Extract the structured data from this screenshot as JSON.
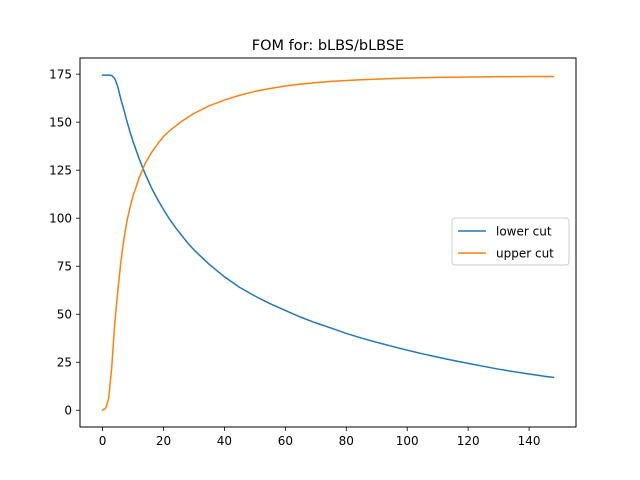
{
  "chart_data": {
    "type": "line",
    "title": "FOM for: bLBS/bLBSE",
    "xlabel": "",
    "ylabel": "",
    "xlim": [
      -7.4,
      155.4
    ],
    "ylim": [
      -8.7,
      183.4
    ],
    "xticks": [
      0,
      20,
      40,
      60,
      80,
      100,
      120,
      140
    ],
    "yticks": [
      0,
      25,
      50,
      75,
      100,
      125,
      150,
      175
    ],
    "grid": false,
    "legend_position": "center-right",
    "x": [
      0,
      1,
      2,
      3,
      4,
      5,
      6,
      7,
      8,
      9,
      10,
      12,
      14,
      16,
      18,
      20,
      22,
      24,
      26,
      28,
      30,
      35,
      40,
      45,
      50,
      55,
      60,
      65,
      70,
      75,
      80,
      85,
      90,
      95,
      100,
      105,
      110,
      115,
      120,
      125,
      130,
      135,
      140,
      145,
      148
    ],
    "series": [
      {
        "name": "lower cut",
        "color": "#1f77b4",
        "values": [
          174.5,
          174.5,
          174.5,
          174.3,
          172.8,
          168.5,
          162.0,
          156.5,
          150.5,
          145.0,
          140.0,
          131.0,
          123.0,
          116.0,
          110.0,
          104.5,
          99.5,
          95.0,
          91.0,
          87.0,
          83.5,
          76.0,
          69.5,
          64.0,
          59.5,
          55.5,
          52.0,
          48.5,
          45.5,
          42.8,
          40.0,
          37.6,
          35.4,
          33.3,
          31.3,
          29.4,
          27.7,
          26.0,
          24.4,
          22.9,
          21.4,
          20.1,
          18.9,
          17.7,
          17.1
        ]
      },
      {
        "name": "upper cut",
        "color": "#ff7f0e",
        "values": [
          0.0,
          1.0,
          6.0,
          22.0,
          45.0,
          62.0,
          77.0,
          89.0,
          98.5,
          105.5,
          111.5,
          121.0,
          128.5,
          134.0,
          138.5,
          142.5,
          145.5,
          148.0,
          150.5,
          152.5,
          154.5,
          158.5,
          161.5,
          164.0,
          166.0,
          167.5,
          168.8,
          169.8,
          170.6,
          171.2,
          171.7,
          172.1,
          172.4,
          172.7,
          172.9,
          173.1,
          173.3,
          173.4,
          173.5,
          173.6,
          173.7,
          173.7,
          173.8,
          173.8,
          173.8
        ]
      }
    ]
  }
}
